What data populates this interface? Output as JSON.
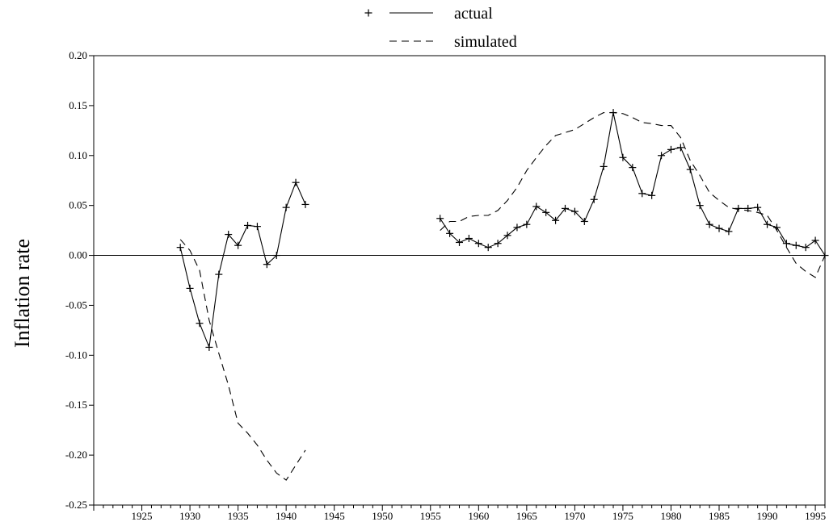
{
  "chart_data": {
    "type": "line",
    "title": "",
    "xlabel": "",
    "ylabel": "Inflation rate",
    "xlim": [
      1920,
      1996
    ],
    "ylim": [
      -0.25,
      0.2
    ],
    "x_tick_labels": [
      "1925",
      "1930",
      "1935",
      "1940",
      "1945",
      "1950",
      "1955",
      "1960",
      "1965",
      "1970",
      "1975",
      "1980",
      "1985",
      "1990",
      "1995"
    ],
    "y_tick_labels": [
      "0.20",
      "0.15",
      "0.10",
      "0.05",
      "0.00",
      "-0.05",
      "-0.10",
      "-0.15",
      "-0.20",
      "-0.25"
    ],
    "zero_line": true,
    "grid": false,
    "legend": {
      "placement": "top-center",
      "entries": [
        {
          "label": "actual",
          "marker": "plus",
          "line": "solid"
        },
        {
          "label": "simulated",
          "marker": "none",
          "line": "dashed"
        }
      ]
    },
    "series": [
      {
        "name": "actual",
        "segments": [
          {
            "x": [
              1929,
              1930,
              1931,
              1932,
              1933,
              1934,
              1935,
              1936,
              1937,
              1938,
              1939,
              1940,
              1941,
              1942
            ],
            "y": [
              0.008,
              -0.033,
              -0.068,
              -0.092,
              -0.019,
              0.021,
              0.01,
              0.03,
              0.029,
              -0.009,
              0.0,
              0.048,
              0.073,
              0.051
            ]
          },
          {
            "x": [
              1956,
              1957,
              1958,
              1959,
              1960,
              1961,
              1962,
              1963,
              1964,
              1965,
              1966,
              1967,
              1968,
              1969,
              1970,
              1971,
              1972,
              1973,
              1974,
              1975,
              1976,
              1977,
              1978,
              1979,
              1980,
              1981,
              1982,
              1983,
              1984,
              1985,
              1986,
              1987,
              1988,
              1989,
              1990,
              1991,
              1992,
              1993,
              1994,
              1995,
              1996
            ],
            "y": [
              0.037,
              0.022,
              0.013,
              0.017,
              0.012,
              0.008,
              0.012,
              0.02,
              0.028,
              0.031,
              0.049,
              0.043,
              0.035,
              0.047,
              0.044,
              0.034,
              0.056,
              0.089,
              0.143,
              0.098,
              0.088,
              0.062,
              0.06,
              0.1,
              0.106,
              0.108,
              0.086,
              0.05,
              0.031,
              0.027,
              0.024,
              0.047,
              0.047,
              0.048,
              0.031,
              0.028,
              0.012,
              0.01,
              0.008,
              0.015,
              0.0
            ]
          }
        ]
      },
      {
        "name": "simulated",
        "segments": [
          {
            "x": [
              1929,
              1930,
              1931,
              1932,
              1933,
              1934,
              1935,
              1936,
              1937,
              1938,
              1939,
              1940,
              1941,
              1942
            ],
            "y": [
              0.016,
              0.005,
              -0.015,
              -0.065,
              -0.098,
              -0.13,
              -0.168,
              -0.178,
              -0.19,
              -0.205,
              -0.218,
              -0.225,
              -0.21,
              -0.195
            ]
          },
          {
            "x": [
              1956,
              1957,
              1958,
              1959,
              1960,
              1961,
              1962,
              1963,
              1964,
              1965,
              1966,
              1967,
              1968,
              1969,
              1970,
              1971,
              1972,
              1973,
              1974,
              1975,
              1976,
              1977,
              1978,
              1979,
              1980,
              1981,
              1982,
              1983,
              1984,
              1985,
              1986,
              1987,
              1988,
              1989,
              1990,
              1991,
              1992,
              1993,
              1994,
              1995,
              1996
            ],
            "y": [
              0.025,
              0.034,
              0.034,
              0.039,
              0.04,
              0.04,
              0.045,
              0.055,
              0.068,
              0.085,
              0.098,
              0.11,
              0.12,
              0.123,
              0.126,
              0.132,
              0.138,
              0.143,
              0.143,
              0.142,
              0.138,
              0.133,
              0.132,
              0.13,
              0.13,
              0.118,
              0.095,
              0.08,
              0.063,
              0.055,
              0.048,
              0.046,
              0.045,
              0.043,
              0.04,
              0.025,
              0.008,
              -0.008,
              -0.016,
              -0.022,
              0.0
            ]
          }
        ]
      }
    ]
  }
}
